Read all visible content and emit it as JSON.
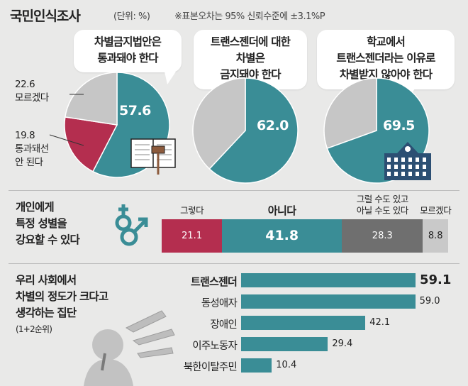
{
  "header": {
    "title": "국민인식조사",
    "unit": "(단위: %)",
    "note": "※표본오차는 95% 신뢰수준에 ±3.1%P"
  },
  "colors": {
    "teal": "#3a8d96",
    "crimson": "#b42e4f",
    "gray": "#c6c6c6",
    "darkgray": "#6f6f6f",
    "lightgray": "#c9c9c9"
  },
  "icons": [
    "book-gavel-icon",
    "gender-symbols-icon",
    "school-building-icon",
    "pointing-hands-icon"
  ],
  "chart_data": [
    {
      "type": "pie",
      "title": "차별금지법안은 통과돼야 한다",
      "title_lines": [
        "차별금지법안은",
        "통과돼야 한다"
      ],
      "slices": [
        {
          "label": "",
          "value": 57.6,
          "display": "57.6"
        },
        {
          "label": "통과돼선 안 된다",
          "label_lines": [
            "통과돼선",
            "안 된다"
          ],
          "value": 19.8,
          "display": "19.8"
        },
        {
          "label": "모르겠다",
          "value": 22.6,
          "display": "22.6"
        }
      ]
    },
    {
      "type": "pie",
      "title": "트랜스젠더에 대한 차별은 금지돼야 한다",
      "title_lines": [
        "트랜스젠더에 대한",
        "차별은",
        "금지돼야 한다"
      ],
      "slices": [
        {
          "label": "",
          "value": 62.0,
          "display": "62.0"
        },
        {
          "label": "",
          "value": 38.0
        }
      ]
    },
    {
      "type": "pie",
      "title": "학교에서 트랜스젠더라는 이유로 차별받지 않아야 한다",
      "title_lines": [
        "학교에서",
        "트랜스젠더라는 이유로",
        "차별받지 않아야 한다"
      ],
      "slices": [
        {
          "label": "",
          "value": 69.5,
          "display": "69.5"
        },
        {
          "label": "",
          "value": 30.5
        }
      ]
    },
    {
      "type": "bar",
      "orientation": "stacked-horizontal",
      "title": "개인에게 특정 성별을 강요할 수 있다",
      "title_lines": [
        "개인에게",
        "특정 성별을",
        "강요할 수 있다"
      ],
      "segments": [
        {
          "label": "그렇다",
          "label_lines": [
            "그렇다"
          ],
          "value": 21.1,
          "display": "21.1"
        },
        {
          "label": "아니다",
          "label_lines": [
            "아니다"
          ],
          "value": 41.8,
          "display": "41.8"
        },
        {
          "label": "그럴 수도 있고 아닐 수도 있다",
          "label_lines": [
            "그럴 수도 있고",
            "아닐 수도 있다"
          ],
          "value": 28.3,
          "display": "28.3"
        },
        {
          "label": "모르겠다",
          "label_lines": [
            "모르겠다"
          ],
          "value": 8.8,
          "display": "8.8"
        }
      ]
    },
    {
      "type": "bar",
      "orientation": "horizontal",
      "title": "우리 사회에서 차별의 정도가 크다고 생각하는 집단",
      "title_lines": [
        "우리 사회에서",
        "차별의 정도가 크다고",
        "생각하는 집단"
      ],
      "subtitle": "(1+2순위)",
      "categories": [
        "트랜스젠더",
        "동성애자",
        "장애인",
        "이주노동자",
        "북한이탈주민"
      ],
      "values": [
        59.1,
        59.0,
        42.1,
        29.4,
        10.4
      ],
      "display": [
        "59.1",
        "59.0",
        "42.1",
        "29.4",
        "10.4"
      ]
    }
  ]
}
